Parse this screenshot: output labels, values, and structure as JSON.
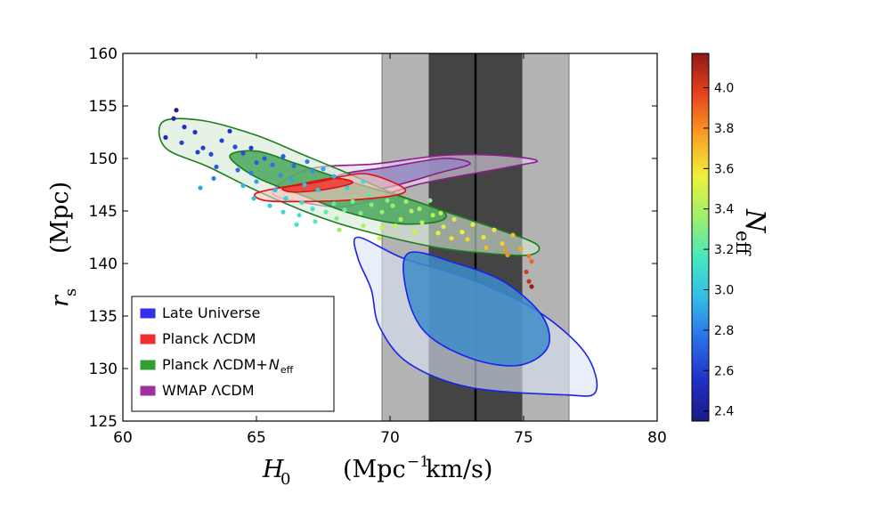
{
  "chart_data": {
    "type": "scatter",
    "title": "",
    "xlabel": {
      "symbol": "H",
      "sub": "0",
      "units_main": "(Mpc",
      "units_sup": "−1",
      "units_rest": " km/s)"
    },
    "ylabel": {
      "symbol": "r",
      "sub": "s",
      "units": "(Mpc)"
    },
    "xlim": [
      60,
      80
    ],
    "ylim": [
      125,
      160
    ],
    "xticks": [
      "60",
      "65",
      "70",
      "75",
      "80"
    ],
    "yticks": [
      "125",
      "130",
      "135",
      "140",
      "145",
      "150",
      "155",
      "160"
    ],
    "bands": [
      {
        "name": "H0 2-sigma band",
        "x0": 69.7,
        "x1": 76.7,
        "color": "#b3b3b3"
      },
      {
        "name": "H0 1-sigma band",
        "x0": 71.45,
        "x1": 74.95,
        "color": "#444444"
      }
    ],
    "center_line_x": 73.2,
    "contours": [
      {
        "name": "Late Universe",
        "level": "outer",
        "points": [
          [
            68.8,
            142.5
          ],
          [
            70.5,
            140.5
          ],
          [
            73.0,
            138.5
          ],
          [
            75.5,
            135.5
          ],
          [
            77.3,
            131.5
          ],
          [
            77.7,
            127.8
          ],
          [
            76.5,
            127.5
          ],
          [
            73.0,
            128.2
          ],
          [
            70.7,
            130.5
          ],
          [
            69.6,
            134.0
          ],
          [
            69.3,
            137.5
          ],
          [
            68.8,
            140.5
          ]
        ]
      },
      {
        "name": "Late Universe",
        "level": "inner",
        "points": [
          [
            70.7,
            141.0
          ],
          [
            72.5,
            140.0
          ],
          [
            74.3,
            138.2
          ],
          [
            75.7,
            135.0
          ],
          [
            75.9,
            132.0
          ],
          [
            74.8,
            130.3
          ],
          [
            73.0,
            131.0
          ],
          [
            71.3,
            133.5
          ],
          [
            70.6,
            137.5
          ]
        ]
      },
      {
        "name": "WMAP ΛCDM",
        "level": "outer",
        "points": [
          [
            67.0,
            149.0
          ],
          [
            69.5,
            149.5
          ],
          [
            72.0,
            150.3
          ],
          [
            74.0,
            150.3
          ],
          [
            75.5,
            149.8
          ],
          [
            74.5,
            149.2
          ],
          [
            71.0,
            147.5
          ],
          [
            68.5,
            145.5
          ],
          [
            66.8,
            145.8
          ],
          [
            65.6,
            146.8
          ]
        ]
      },
      {
        "name": "WMAP ΛCDM",
        "level": "inner",
        "points": [
          [
            68.0,
            148.3
          ],
          [
            70.0,
            149.2
          ],
          [
            72.0,
            150.0
          ],
          [
            73.0,
            149.5
          ],
          [
            71.8,
            148.6
          ],
          [
            70.0,
            147.3
          ],
          [
            68.2,
            146.6
          ]
        ]
      },
      {
        "name": "Planck ΛCDM+Neff",
        "level": "outer",
        "points": [
          [
            61.5,
            153.5
          ],
          [
            63.0,
            153.6
          ],
          [
            65.0,
            152.2
          ],
          [
            66.8,
            150.3
          ],
          [
            68.5,
            148.5
          ],
          [
            70.0,
            146.8
          ],
          [
            72.0,
            145.0
          ],
          [
            74.0,
            143.3
          ],
          [
            75.5,
            141.8
          ],
          [
            75.2,
            140.8
          ],
          [
            73.5,
            141.0
          ],
          [
            71.8,
            141.5
          ],
          [
            69.5,
            142.8
          ],
          [
            67.5,
            144.3
          ],
          [
            65.2,
            146.7
          ],
          [
            63.2,
            149.2
          ],
          [
            61.6,
            151.0
          ]
        ]
      },
      {
        "name": "Planck ΛCDM+Neff",
        "level": "inner",
        "points": [
          [
            64.0,
            150.2
          ],
          [
            65.0,
            150.7
          ],
          [
            66.5,
            149.5
          ],
          [
            68.5,
            147.8
          ],
          [
            70.5,
            146.3
          ],
          [
            72.0,
            144.9
          ],
          [
            71.8,
            144.0
          ],
          [
            70.3,
            143.8
          ],
          [
            68.5,
            144.8
          ],
          [
            66.7,
            146.5
          ],
          [
            65.0,
            148.2
          ]
        ]
      },
      {
        "name": "Planck ΛCDM",
        "level": "outer",
        "points": [
          [
            65.0,
            146.7
          ],
          [
            66.5,
            147.5
          ],
          [
            68.0,
            148.2
          ],
          [
            69.2,
            148.5
          ],
          [
            70.5,
            147.2
          ],
          [
            70.2,
            146.5
          ],
          [
            68.3,
            146.0
          ],
          [
            66.5,
            145.9
          ],
          [
            65.3,
            146.0
          ]
        ]
      },
      {
        "name": "Planck ΛCDM",
        "level": "inner",
        "points": [
          [
            66.0,
            147.2
          ],
          [
            67.2,
            147.7
          ],
          [
            68.0,
            148.1
          ],
          [
            68.6,
            147.7
          ],
          [
            67.7,
            147.1
          ],
          [
            66.4,
            146.8
          ]
        ]
      }
    ],
    "styles": {
      "Late Universe": {
        "outer_fill": "#dae5f4",
        "inner_fill": "#3d8cc8",
        "edge": "#1a22ee"
      },
      "WMAP ΛCDM": {
        "outer_fill": "#e2d6e7",
        "inner_fill": "#9486c2",
        "edge": "#8e1b92"
      },
      "Planck ΛCDM+Neff": {
        "outer_fill": "#d4ead4",
        "inner_fill": "#4aa65d",
        "edge": "#1d7d1d"
      },
      "Planck ΛCDM": {
        "outer_fill": "#f8c6c0",
        "inner_fill": "#ef3a32",
        "edge": "#dd1313"
      }
    },
    "legend": [
      {
        "label": "Late Universe",
        "color": "#3030f0",
        "label_sub": ""
      },
      {
        "label": "Planck ΛCDM",
        "color": "#f03030",
        "label_sub": ""
      },
      {
        "label": "Planck ΛCDM+",
        "color": "#30a030",
        "label_sub": "N",
        "label_subsub": "eff"
      },
      {
        "label": "WMAP ΛCDM",
        "color": "#a030a0",
        "label_sub": ""
      }
    ],
    "legend_position": "lower-left",
    "colorbar": {
      "label_main": "N",
      "label_sub": "eff",
      "range": [
        2.35,
        4.17
      ],
      "ticks": [
        "2.4",
        "2.6",
        "2.8",
        "3.0",
        "3.2",
        "3.4",
        "3.6",
        "3.8",
        "4.0"
      ],
      "colors": [
        "#1b1b85",
        "#2030c8",
        "#2a6ee8",
        "#33bbe6",
        "#46e8c0",
        "#9ef06a",
        "#eef23a",
        "#f8a025",
        "#e8421c",
        "#8e1a1a"
      ]
    },
    "points": [
      [
        61.6,
        152.0,
        2.5
      ],
      [
        61.9,
        153.8,
        2.45
      ],
      [
        62.0,
        154.6,
        2.4
      ],
      [
        62.3,
        153.0,
        2.55
      ],
      [
        62.2,
        151.5,
        2.6
      ],
      [
        62.7,
        152.5,
        2.55
      ],
      [
        63.0,
        151.0,
        2.6
      ],
      [
        62.8,
        150.6,
        2.6
      ],
      [
        63.3,
        150.4,
        2.65
      ],
      [
        63.7,
        151.7,
        2.6
      ],
      [
        64.0,
        152.6,
        2.55
      ],
      [
        64.2,
        151.1,
        2.65
      ],
      [
        63.5,
        149.2,
        2.7
      ],
      [
        64.5,
        150.5,
        2.65
      ],
      [
        64.8,
        151.0,
        2.6
      ],
      [
        65.0,
        149.6,
        2.7
      ],
      [
        64.3,
        148.9,
        2.75
      ],
      [
        63.4,
        148.1,
        2.8
      ],
      [
        62.9,
        147.2,
        2.9
      ],
      [
        64.8,
        148.6,
        2.8
      ],
      [
        65.3,
        150.0,
        2.7
      ],
      [
        65.6,
        149.4,
        2.75
      ],
      [
        66.0,
        150.2,
        2.7
      ],
      [
        66.4,
        149.3,
        2.75
      ],
      [
        66.9,
        149.7,
        2.8
      ],
      [
        65.9,
        148.4,
        2.85
      ],
      [
        65.0,
        147.8,
        2.9
      ],
      [
        64.5,
        147.4,
        2.95
      ],
      [
        65.7,
        147.0,
        2.95
      ],
      [
        66.3,
        148.0,
        2.9
      ],
      [
        67.1,
        148.8,
        2.85
      ],
      [
        67.5,
        149.0,
        2.9
      ],
      [
        67.9,
        148.3,
        2.95
      ],
      [
        66.8,
        147.5,
        2.95
      ],
      [
        67.3,
        147.0,
        3.0
      ],
      [
        64.9,
        146.2,
        3.0
      ],
      [
        65.5,
        145.5,
        3.05
      ],
      [
        66.1,
        146.2,
        3.05
      ],
      [
        66.7,
        145.8,
        3.1
      ],
      [
        66.0,
        144.9,
        3.1
      ],
      [
        66.6,
        144.6,
        3.15
      ],
      [
        67.1,
        145.2,
        3.15
      ],
      [
        67.6,
        144.9,
        3.2
      ],
      [
        67.9,
        145.7,
        3.2
      ],
      [
        68.3,
        145.1,
        3.25
      ],
      [
        68.6,
        145.9,
        3.25
      ],
      [
        68.9,
        144.8,
        3.3
      ],
      [
        69.3,
        145.6,
        3.3
      ],
      [
        69.7,
        144.9,
        3.35
      ],
      [
        70.1,
        145.5,
        3.35
      ],
      [
        70.4,
        144.2,
        3.4
      ],
      [
        70.8,
        145.0,
        3.4
      ],
      [
        71.2,
        143.9,
        3.45
      ],
      [
        71.6,
        144.6,
        3.45
      ],
      [
        72.0,
        143.5,
        3.5
      ],
      [
        72.4,
        144.2,
        3.5
      ],
      [
        72.7,
        143.0,
        3.55
      ],
      [
        73.1,
        143.7,
        3.55
      ],
      [
        73.5,
        142.5,
        3.6
      ],
      [
        73.9,
        143.2,
        3.6
      ],
      [
        74.2,
        141.9,
        3.65
      ],
      [
        74.6,
        142.7,
        3.7
      ],
      [
        74.9,
        141.4,
        3.75
      ],
      [
        69.2,
        146.6,
        3.2
      ],
      [
        69.9,
        146.0,
        3.3
      ],
      [
        70.6,
        145.9,
        3.35
      ],
      [
        71.1,
        145.2,
        3.4
      ],
      [
        71.5,
        146.0,
        3.3
      ],
      [
        70.2,
        143.6,
        3.45
      ],
      [
        70.9,
        143.0,
        3.5
      ],
      [
        71.8,
        142.9,
        3.55
      ],
      [
        72.3,
        142.4,
        3.6
      ],
      [
        72.9,
        142.3,
        3.65
      ],
      [
        73.6,
        141.5,
        3.7
      ],
      [
        74.4,
        140.8,
        3.8
      ],
      [
        75.2,
        140.7,
        3.85
      ],
      [
        75.3,
        140.2,
        3.9
      ],
      [
        69.0,
        143.6,
        3.4
      ],
      [
        68.1,
        143.2,
        3.35
      ],
      [
        68.0,
        144.3,
        3.3
      ],
      [
        67.2,
        144.0,
        3.2
      ],
      [
        66.5,
        143.7,
        3.15
      ],
      [
        69.6,
        142.4,
        3.5
      ],
      [
        69.7,
        143.4,
        3.45
      ],
      [
        75.2,
        138.3,
        4.05
      ],
      [
        75.3,
        137.8,
        4.15
      ],
      [
        75.1,
        139.2,
        4.0
      ],
      [
        74.3,
        141.3,
        3.8
      ],
      [
        71.9,
        144.8,
        3.45
      ],
      [
        68.4,
        147.2,
        3.05
      ],
      [
        69.0,
        147.8,
        3.1
      ]
    ]
  }
}
